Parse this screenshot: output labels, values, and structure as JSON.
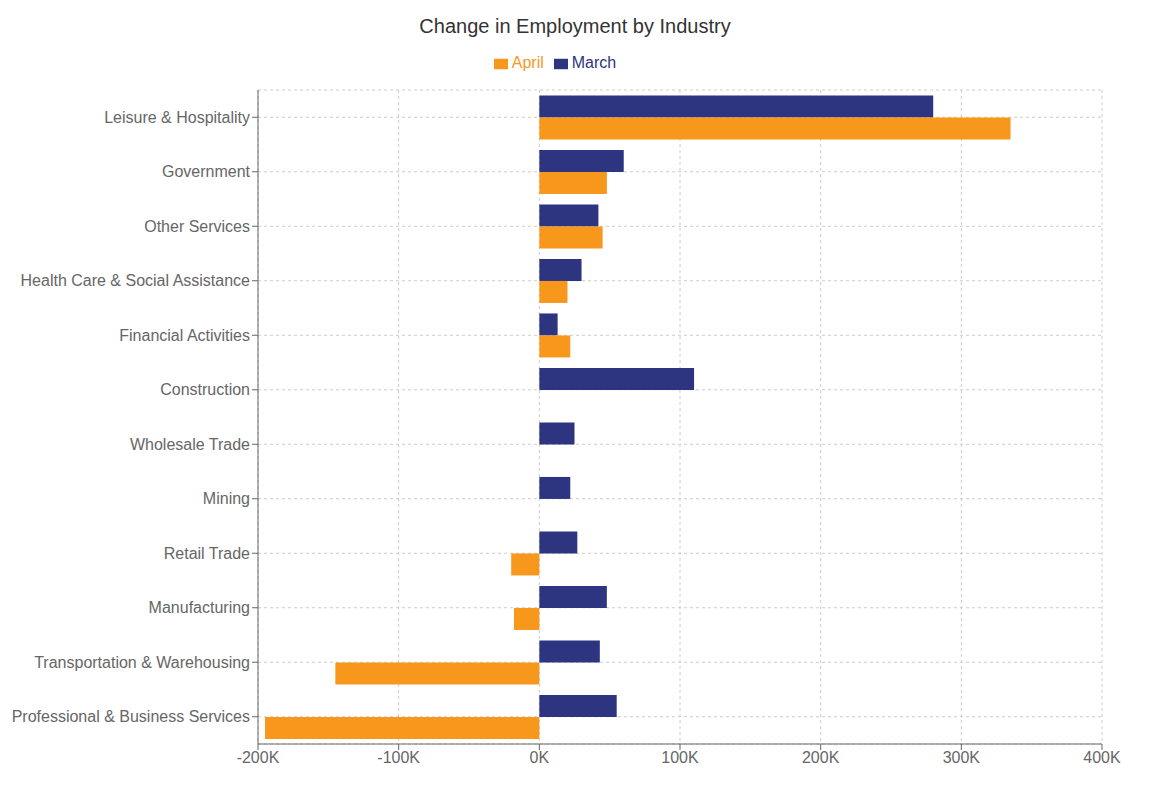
{
  "chart_data": {
    "type": "bar",
    "orientation": "horizontal",
    "title": "Change in Employment by Industry",
    "categories": [
      "Leisure & Hospitality",
      "Government",
      "Other Services",
      "Health Care & Social Assistance",
      "Financial Activities",
      "Construction",
      "Wholesale Trade",
      "Mining",
      "Retail Trade",
      "Manufacturing",
      "Transportation & Warehousing",
      "Professional & Business Services"
    ],
    "series": [
      {
        "name": "March",
        "color": "#2d3580",
        "values": [
          280000,
          60000,
          42000,
          30000,
          13000,
          110000,
          25000,
          22000,
          27000,
          48000,
          43000,
          55000
        ]
      },
      {
        "name": "April",
        "color": "#f7981d",
        "values": [
          335000,
          48000,
          45000,
          20000,
          22000,
          0,
          0,
          0,
          -20000,
          -18000,
          -145000,
          -195000
        ]
      }
    ],
    "xlim": [
      -200000,
      400000
    ],
    "xticks": [
      {
        "value": -200000,
        "label": "-200K"
      },
      {
        "value": -100000,
        "label": "-100K"
      },
      {
        "value": 0,
        "label": "0K"
      },
      {
        "value": 100000,
        "label": "100K"
      },
      {
        "value": 200000,
        "label": "200K"
      },
      {
        "value": 300000,
        "label": "300K"
      },
      {
        "value": 400000,
        "label": "400K"
      }
    ],
    "grid": true,
    "legend": "top"
  }
}
